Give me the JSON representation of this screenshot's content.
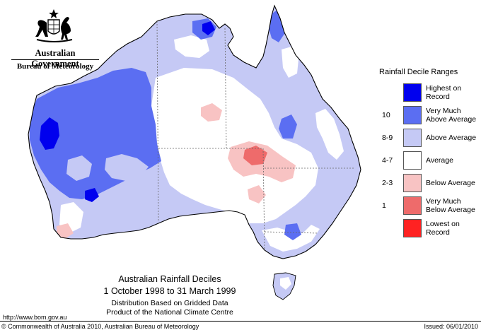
{
  "header": {
    "government": "Australian Government",
    "bureau": "Bureau of Meteorology"
  },
  "legend": {
    "title": "Rainfall Decile Ranges",
    "items": [
      {
        "label_line1": "Highest on",
        "label_line2": "Record",
        "range": "",
        "color": "#0000ee"
      },
      {
        "label_line1": "Very Much",
        "label_line2": "Above Average",
        "range": "10",
        "color": "#5b6ef2"
      },
      {
        "label_line1": "Above Average",
        "label_line2": "",
        "range": "8-9",
        "color": "#c5c9f5"
      },
      {
        "label_line1": "Average",
        "label_line2": "",
        "range": "4-7",
        "color": "#ffffff"
      },
      {
        "label_line1": "Below Average",
        "label_line2": "",
        "range": "2-3",
        "color": "#f8c3c3"
      },
      {
        "label_line1": "Very Much",
        "label_line2": "Below Average",
        "range": "1",
        "color": "#ee6b6b"
      },
      {
        "label_line1": "Lowest on",
        "label_line2": "Record",
        "range": "",
        "color": "#ff2222"
      }
    ]
  },
  "chart": {
    "title": "Australian Rainfall Deciles",
    "dates": "1 October 1998 to 31 March 1999",
    "note1": "Distribution Based on Gridded Data",
    "note2": "Product of the National Climate Centre"
  },
  "footer": {
    "url": "http://www.bom.gov.au",
    "copyright": "© Commonwealth of Australia 2010, Australian Bureau of Meteorology",
    "issued": "Issued: 06/01/2010"
  },
  "icons": {
    "coat_of_arms": "coat-of-arms-icon"
  }
}
